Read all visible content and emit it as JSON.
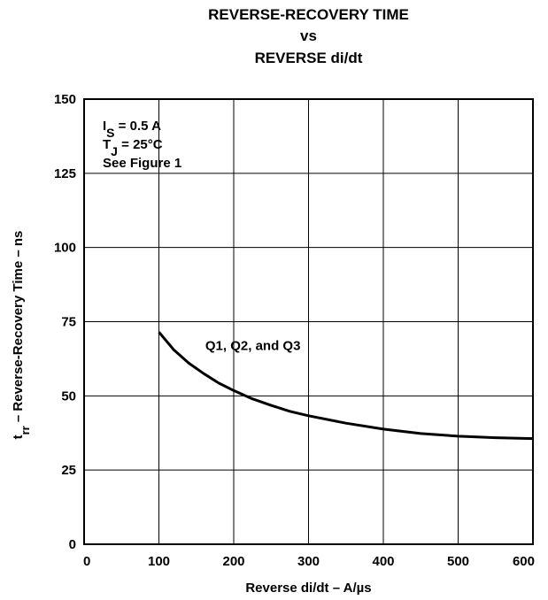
{
  "chart_data": {
    "type": "line",
    "title_lines": [
      "REVERSE-RECOVERY TIME",
      "vs",
      "REVERSE di/dt"
    ],
    "xlabel": "Reverse di/dt – A/µs",
    "ylabel_main": "t",
    "ylabel_sub": "rr",
    "ylabel_rest": " – Reverse-Recovery Time – ns",
    "xlim": [
      0,
      600
    ],
    "ylim": [
      0,
      150
    ],
    "xticks": [
      0,
      100,
      200,
      300,
      400,
      500,
      600
    ],
    "yticks": [
      0,
      25,
      50,
      75,
      100,
      125,
      150
    ],
    "grid": true,
    "conditions": [
      {
        "main": "I",
        "sub": "S",
        "rest": " = 0.5 A"
      },
      {
        "main": "T",
        "sub": "J",
        "rest": " = 25°C"
      },
      {
        "main": "See Figure 1",
        "sub": "",
        "rest": ""
      }
    ],
    "series": [
      {
        "name": "Q1, Q2, and Q3",
        "x": [
          100,
          120,
          140,
          160,
          180,
          200,
          225,
          250,
          275,
          300,
          350,
          400,
          450,
          500,
          550,
          600
        ],
        "y": [
          71.5,
          65.5,
          61,
          57.5,
          54.3,
          51.8,
          49,
          46.8,
          44.8,
          43.3,
          40.8,
          38.8,
          37.3,
          36.4,
          35.9,
          35.6
        ]
      }
    ]
  }
}
